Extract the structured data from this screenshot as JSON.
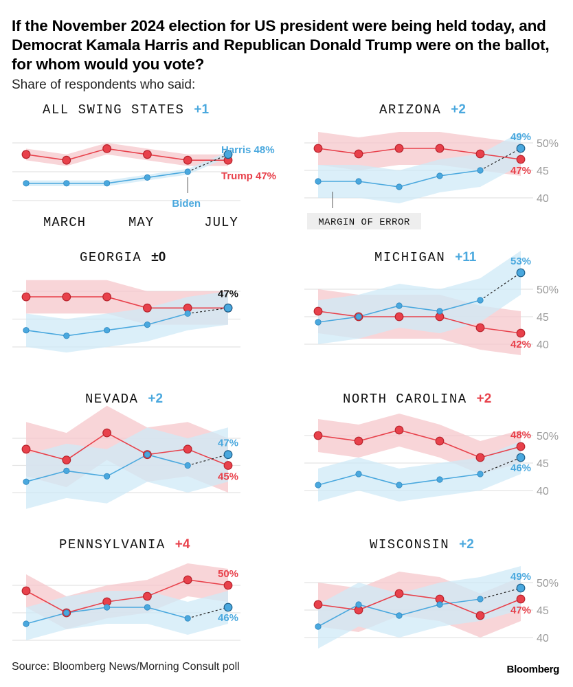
{
  "title": "If the November 2024 election for US president were being held today, and Democrat Kamala Harris and Republican Donald Trump were on the ballot, for whom would you vote?",
  "subtitle": "Share of respondents who said:",
  "source": "Source: Bloomberg News/Morning Consult poll",
  "brand": "Bloomberg",
  "colors": {
    "harris": "#4aa8de",
    "trump": "#e8414b",
    "harris_band": "#cfe9f7",
    "trump_band": "#f6c7cb",
    "grid": "#e4e4e4",
    "axis_text": "#9a9a9a"
  },
  "annotations": {
    "harris_label": "Harris 48%",
    "trump_label": "Trump 47%",
    "biden_label": "Biden",
    "margin_label": "MARGIN OF ERROR",
    "month_labels": [
      "MARCH",
      "MAY",
      "JULY"
    ]
  },
  "chart_data": [
    {
      "type": "line",
      "title": "ALL SWING STATES",
      "margin": "+1",
      "margin_party": "harris",
      "ylim": [
        40,
        50
      ],
      "y_ticks": [],
      "trump": [
        48,
        47,
        49,
        48,
        47,
        47
      ],
      "harris": [
        43,
        43,
        43,
        44,
        45,
        48
      ],
      "trump_band": [
        [
          47,
          49
        ],
        [
          46,
          48
        ],
        [
          48,
          50
        ],
        [
          47,
          49
        ],
        [
          46,
          48
        ],
        [
          46,
          48
        ]
      ],
      "harris_band": [
        [
          42.5,
          43.5
        ],
        [
          42.5,
          43.5
        ],
        [
          42.5,
          43.5
        ],
        [
          43.5,
          44.5
        ],
        [
          44.5,
          45.5
        ],
        [
          47.5,
          48.5
        ]
      ],
      "labels": {}
    },
    {
      "type": "line",
      "title": "ARIZONA",
      "margin": "+2",
      "margin_party": "harris",
      "ylim": [
        40,
        50
      ],
      "y_ticks": [
        "50%",
        "45",
        "40"
      ],
      "trump": [
        49,
        48,
        49,
        49,
        48,
        47
      ],
      "harris": [
        43,
        43,
        42,
        44,
        45,
        49
      ],
      "trump_band": [
        [
          46,
          52
        ],
        [
          45,
          51
        ],
        [
          46,
          52
        ],
        [
          46,
          52
        ],
        [
          45,
          51
        ],
        [
          44,
          50
        ]
      ],
      "harris_band": [
        [
          40,
          46
        ],
        [
          40,
          46
        ],
        [
          39,
          45
        ],
        [
          41,
          47
        ],
        [
          42,
          48
        ],
        [
          46,
          52
        ]
      ],
      "labels": {
        "harris": "49%",
        "trump": "47%"
      }
    },
    {
      "type": "line",
      "title": "GEORGIA",
      "margin": "±0",
      "margin_party": "tie",
      "ylim": [
        40,
        50
      ],
      "y_ticks": [],
      "trump": [
        49,
        49,
        49,
        47,
        47,
        47
      ],
      "harris": [
        43,
        42,
        43,
        44,
        46,
        47
      ],
      "trump_band": [
        [
          46,
          52
        ],
        [
          46,
          52
        ],
        [
          46,
          52
        ],
        [
          44,
          50
        ],
        [
          44,
          50
        ],
        [
          44,
          50
        ]
      ],
      "harris_band": [
        [
          40,
          46
        ],
        [
          39,
          45
        ],
        [
          40,
          46
        ],
        [
          41,
          47
        ],
        [
          43,
          49
        ],
        [
          44,
          50
        ]
      ],
      "labels": {
        "tie": "47%"
      }
    },
    {
      "type": "line",
      "title": "MICHIGAN",
      "margin": "+11",
      "margin_party": "harris",
      "ylim": [
        40,
        50
      ],
      "y_ticks": [
        "50%",
        "45",
        "40"
      ],
      "trump": [
        46,
        45,
        45,
        45,
        43,
        42
      ],
      "harris": [
        44,
        45,
        47,
        46,
        48,
        53
      ],
      "trump_band": [
        [
          42,
          50
        ],
        [
          41,
          49
        ],
        [
          41,
          49
        ],
        [
          41,
          49
        ],
        [
          39,
          47
        ],
        [
          38,
          46
        ]
      ],
      "harris_band": [
        [
          40,
          48
        ],
        [
          41,
          49
        ],
        [
          43,
          51
        ],
        [
          42,
          50
        ],
        [
          44,
          52
        ],
        [
          49,
          57
        ]
      ],
      "labels": {
        "harris": "53%",
        "trump": "42%"
      }
    },
    {
      "type": "line",
      "title": "NEVADA",
      "margin": "+2",
      "margin_party": "harris",
      "ylim": [
        40,
        50
      ],
      "y_ticks": [],
      "trump": [
        48,
        46,
        51,
        47,
        48,
        45
      ],
      "harris": [
        42,
        44,
        43,
        47,
        45,
        47
      ],
      "trump_band": [
        [
          43,
          53
        ],
        [
          41,
          51
        ],
        [
          46,
          56
        ],
        [
          42,
          52
        ],
        [
          43,
          53
        ],
        [
          40,
          50
        ]
      ],
      "harris_band": [
        [
          37,
          47
        ],
        [
          39,
          49
        ],
        [
          38,
          48
        ],
        [
          42,
          52
        ],
        [
          40,
          50
        ],
        [
          42,
          52
        ]
      ],
      "labels": {
        "harris": "47%",
        "trump": "45%"
      }
    },
    {
      "type": "line",
      "title": "NORTH CAROLINA",
      "margin": "+2",
      "margin_party": "trump",
      "ylim": [
        40,
        50
      ],
      "y_ticks": [
        "50%",
        "45",
        "40"
      ],
      "trump": [
        50,
        49,
        51,
        49,
        46,
        48
      ],
      "harris": [
        41,
        43,
        41,
        42,
        43,
        46
      ],
      "trump_band": [
        [
          47,
          53
        ],
        [
          46,
          52
        ],
        [
          48,
          54
        ],
        [
          46,
          52
        ],
        [
          43,
          49
        ],
        [
          45,
          51
        ]
      ],
      "harris_band": [
        [
          38,
          44
        ],
        [
          40,
          46
        ],
        [
          38,
          44
        ],
        [
          39,
          45
        ],
        [
          40,
          46
        ],
        [
          43,
          49
        ]
      ],
      "labels": {
        "trump": "48%",
        "harris": "46%"
      }
    },
    {
      "type": "line",
      "title": "PENNSYLVANIA",
      "margin": "+4",
      "margin_party": "trump",
      "ylim": [
        40,
        50
      ],
      "y_ticks": [],
      "trump": [
        49,
        45,
        47,
        48,
        51,
        50
      ],
      "harris": [
        43,
        45,
        46,
        46,
        44,
        46
      ],
      "trump_band": [
        [
          46,
          52
        ],
        [
          42,
          48
        ],
        [
          44,
          50
        ],
        [
          45,
          51
        ],
        [
          48,
          54
        ],
        [
          47,
          53
        ]
      ],
      "harris_band": [
        [
          40,
          46
        ],
        [
          42,
          48
        ],
        [
          43,
          49
        ],
        [
          43,
          49
        ],
        [
          41,
          47
        ],
        [
          43,
          49
        ]
      ],
      "labels": {
        "trump": "50%",
        "harris": "46%"
      }
    },
    {
      "type": "line",
      "title": "WISCONSIN",
      "margin": "+2",
      "margin_party": "harris",
      "ylim": [
        40,
        50
      ],
      "y_ticks": [
        "50%",
        "45",
        "40"
      ],
      "trump": [
        46,
        45,
        48,
        47,
        44,
        47
      ],
      "harris": [
        42,
        46,
        44,
        46,
        47,
        49
      ],
      "trump_band": [
        [
          42,
          50
        ],
        [
          41,
          49
        ],
        [
          44,
          52
        ],
        [
          43,
          51
        ],
        [
          40,
          48
        ],
        [
          43,
          51
        ]
      ],
      "harris_band": [
        [
          38,
          46
        ],
        [
          42,
          50
        ],
        [
          40,
          48
        ],
        [
          42,
          50
        ],
        [
          43,
          51
        ],
        [
          45,
          53
        ]
      ],
      "labels": {
        "harris": "49%",
        "trump": "47%"
      }
    }
  ]
}
